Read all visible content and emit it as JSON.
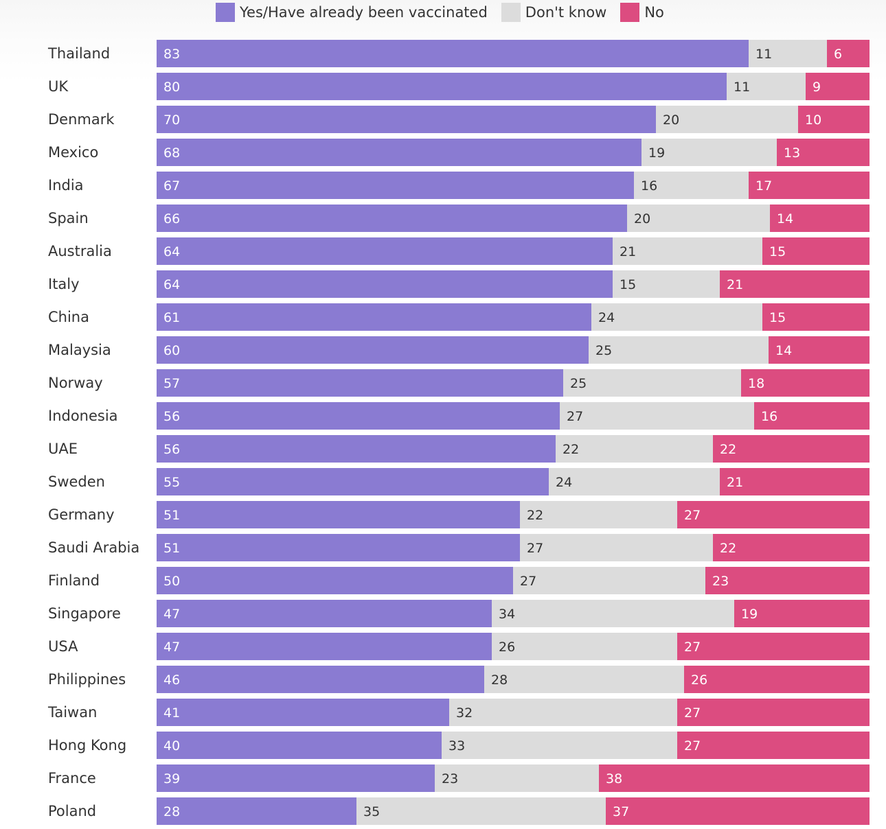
{
  "chart_data": {
    "type": "bar",
    "orientation": "horizontal",
    "stacked": true,
    "title": "",
    "xlabel": "",
    "ylabel": "",
    "xlim": [
      0,
      100
    ],
    "grid": false,
    "legend_position": "top",
    "categories": [
      "Thailand",
      "UK",
      "Denmark",
      "Mexico",
      "India",
      "Spain",
      "Australia",
      "Italy",
      "China",
      "Malaysia",
      "Norway",
      "Indonesia",
      "UAE",
      "Sweden",
      "Germany",
      "Saudi Arabia",
      "Finland",
      "Singapore",
      "USA",
      "Philippines",
      "Taiwan",
      "Hong Kong",
      "France",
      "Poland"
    ],
    "series": [
      {
        "name": "Yes/Have already been vaccinated",
        "key": "yes",
        "color": "#8a7bd2",
        "values": [
          83,
          80,
          70,
          68,
          67,
          66,
          64,
          64,
          61,
          60,
          57,
          56,
          56,
          55,
          51,
          51,
          50,
          47,
          47,
          46,
          41,
          40,
          39,
          28
        ]
      },
      {
        "name": "Don't know",
        "key": "dk",
        "color": "#dcdcdc",
        "values": [
          11,
          11,
          20,
          19,
          16,
          20,
          21,
          15,
          24,
          25,
          25,
          27,
          22,
          24,
          22,
          27,
          27,
          34,
          26,
          28,
          32,
          33,
          23,
          35
        ]
      },
      {
        "name": "No",
        "key": "no",
        "color": "#dc4c80",
        "values": [
          6,
          9,
          10,
          13,
          17,
          14,
          15,
          21,
          15,
          14,
          18,
          16,
          22,
          21,
          27,
          22,
          23,
          19,
          27,
          26,
          27,
          27,
          38,
          37
        ]
      }
    ]
  }
}
